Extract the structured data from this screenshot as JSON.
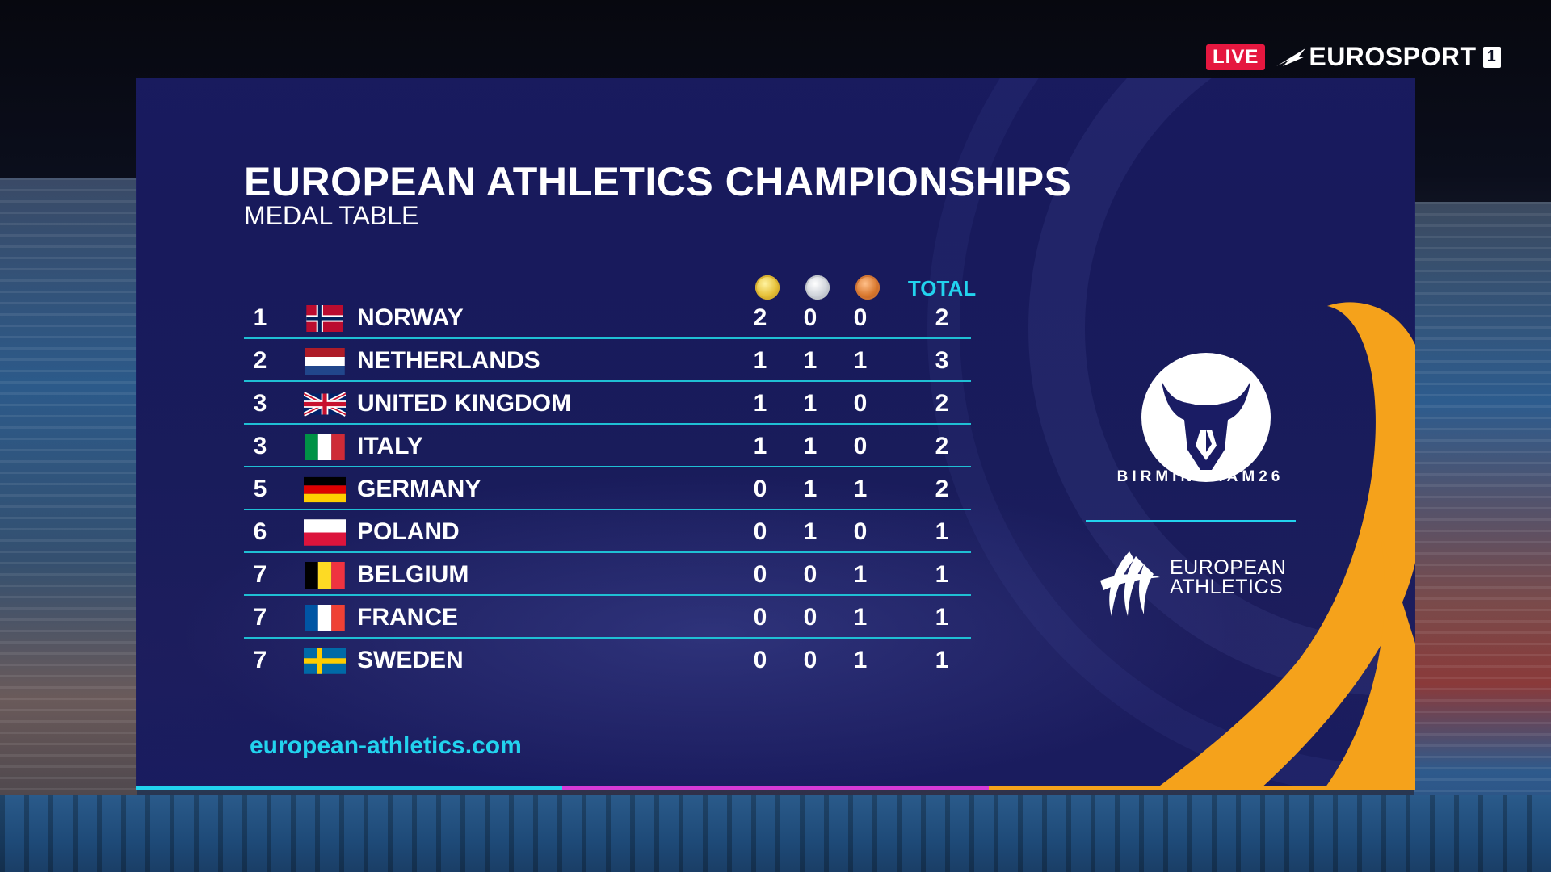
{
  "broadcast": {
    "live_label": "LIVE",
    "channel_name": "EUROSPORT",
    "channel_number": "1"
  },
  "graphic": {
    "title": "EUROPEAN ATHLETICS CHAMPIONSHIPS",
    "subtitle": "MEDAL TABLE",
    "columns": {
      "gold_icon": "gold-medal-icon",
      "silver_icon": "silver-medal-icon",
      "bronze_icon": "bronze-medal-icon",
      "total_label": "TOTAL"
    },
    "rows": [
      {
        "rank": "1",
        "country": "NORWAY",
        "flag": "norway",
        "gold": "2",
        "silver": "0",
        "bronze": "0",
        "total": "2"
      },
      {
        "rank": "2",
        "country": "NETHERLANDS",
        "flag": "netherlands",
        "gold": "1",
        "silver": "1",
        "bronze": "1",
        "total": "3"
      },
      {
        "rank": "3",
        "country": "UNITED KINGDOM",
        "flag": "united-kingdom",
        "gold": "1",
        "silver": "1",
        "bronze": "0",
        "total": "2"
      },
      {
        "rank": "3",
        "country": "ITALY",
        "flag": "italy",
        "gold": "1",
        "silver": "1",
        "bronze": "0",
        "total": "2"
      },
      {
        "rank": "5",
        "country": "GERMANY",
        "flag": "germany",
        "gold": "0",
        "silver": "1",
        "bronze": "1",
        "total": "2"
      },
      {
        "rank": "6",
        "country": "POLAND",
        "flag": "poland",
        "gold": "0",
        "silver": "1",
        "bronze": "0",
        "total": "1"
      },
      {
        "rank": "7",
        "country": "BELGIUM",
        "flag": "belgium",
        "gold": "0",
        "silver": "0",
        "bronze": "1",
        "total": "1"
      },
      {
        "rank": "7",
        "country": "FRANCE",
        "flag": "france",
        "gold": "0",
        "silver": "0",
        "bronze": "1",
        "total": "1"
      },
      {
        "rank": "7",
        "country": "SWEDEN",
        "flag": "sweden",
        "gold": "0",
        "silver": "0",
        "bronze": "1",
        "total": "1"
      }
    ],
    "website": "european-athletics.com",
    "host_logo_text": "BIRMINGHAM26",
    "federation_logo_text": [
      "EUROPEAN",
      "ATHLETICS"
    ]
  },
  "colors": {
    "panel": "#1a1c64",
    "accent_cyan": "#22d3ee",
    "accent_orange": "#f5a21b",
    "accent_magenta": "#d63ad6",
    "live_red": "#e5173f"
  }
}
